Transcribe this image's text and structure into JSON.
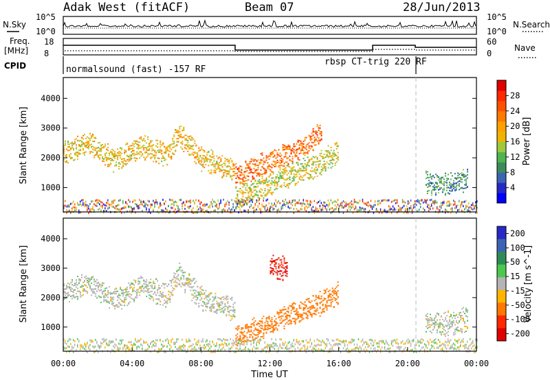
{
  "header": {
    "station": "Adak West (fitACF)",
    "beam": "Beam 07",
    "date": "28/Jun/2013"
  },
  "top_panels": {
    "nsky_label": "N.Sky",
    "nsearch_label": "N.Search",
    "freq_label_1": "Freq.",
    "freq_label_2": "[MHz]",
    "nave_label": "Nave",
    "cpid_label": "CPID",
    "left_ticks_nsky": [
      "10^5",
      "10^0"
    ],
    "right_ticks_nsky": [
      "10^5",
      "10^0"
    ],
    "left_ticks_freq": [
      "18",
      "8"
    ],
    "right_ticks_nave": [
      "60",
      "0"
    ],
    "cpid_mode_1": "normalsound (fast) -157 RF",
    "cpid_mode_2": "rbsp CT-trig 220 RF"
  },
  "chart_data": [
    {
      "type": "heatmap",
      "title": "",
      "xlabel": "Time UT",
      "ylabel": "Slant Range [km]",
      "x_ticks": [
        "00:00",
        "04:00",
        "08:00",
        "12:00",
        "16:00",
        "20:00",
        "00:00"
      ],
      "x_hours": [
        0,
        4,
        8,
        12,
        16,
        20,
        24
      ],
      "xlim": [
        0,
        24
      ],
      "ylim": [
        180,
        4700
      ],
      "y_ticks": [
        1000,
        2000,
        3000,
        4000
      ],
      "colorbar": {
        "label": "Power [dB]",
        "ticks": [
          "4",
          "8",
          "12",
          "16",
          "20",
          "24",
          "28"
        ],
        "tick_values": [
          4,
          8,
          12,
          16,
          20,
          24,
          28
        ],
        "range": [
          0,
          32
        ],
        "colors": [
          "#0000ff",
          "#2828c8",
          "#3c64b4",
          "#3c8c5a",
          "#50b450",
          "#a0c83c",
          "#f0b400",
          "#ffa000",
          "#ff7800",
          "#ff5000",
          "#ff2800",
          "#e00000"
        ]
      },
      "echo_bands": [
        {
          "t": [
            0.0,
            1.5,
            3.0,
            4.5,
            6.0,
            6.7,
            8.0,
            10.0
          ],
          "range": [
            2200,
            2500,
            1900,
            2400,
            2100,
            2800,
            2000,
            1600
          ],
          "power": 18
        },
        {
          "t": [
            10.0,
            12.0,
            14.0,
            15.0
          ],
          "range": [
            1400,
            1900,
            2400,
            2900
          ],
          "power": 24
        },
        {
          "t": [
            10.0,
            11.5,
            13.0,
            14.5,
            16.0
          ],
          "range": [
            700,
            1000,
            1400,
            1700,
            2200
          ],
          "power": 16
        },
        {
          "t": [
            21.0,
            22.0,
            23.5
          ],
          "range": [
            1200,
            1100,
            1300
          ],
          "power": 10
        }
      ]
    },
    {
      "type": "heatmap",
      "title": "",
      "xlabel": "Time UT",
      "ylabel": "Slant Range [km]",
      "x_ticks": [
        "00:00",
        "04:00",
        "08:00",
        "12:00",
        "16:00",
        "20:00",
        "00:00"
      ],
      "xlim": [
        0,
        24
      ],
      "ylim": [
        180,
        4700
      ],
      "y_ticks": [
        1000,
        2000,
        3000,
        4000
      ],
      "colorbar": {
        "label": "Velocity [m s^-1]",
        "ticks": [
          "200",
          "100",
          "50",
          "15",
          "-15",
          "-50",
          "-100",
          "-200"
        ],
        "colors": [
          "#2828c8",
          "#3c64b4",
          "#2e8b57",
          "#4cc84c",
          "#b4b4b4",
          "#ffb400",
          "#ff7800",
          "#ff2800",
          "#e00000"
        ]
      },
      "echo_bands": [
        {
          "t": [
            0.0,
            1.5,
            3.0,
            4.5,
            6.0,
            6.7,
            8.0,
            10.0
          ],
          "range": [
            2200,
            2500,
            1900,
            2400,
            2100,
            2800,
            2000,
            1600
          ],
          "velocity": 0
        },
        {
          "t": [
            10.0,
            11.5,
            13.0,
            14.5,
            16.0
          ],
          "range": [
            700,
            1000,
            1400,
            1700,
            2200
          ],
          "velocity": -80
        },
        {
          "t": [
            12.0,
            13.0
          ],
          "range": [
            3100,
            3000
          ],
          "velocity": -200
        },
        {
          "t": [
            21.0,
            22.0,
            23.5
          ],
          "range": [
            1200,
            1100,
            1300
          ],
          "velocity": 0
        }
      ]
    }
  ]
}
